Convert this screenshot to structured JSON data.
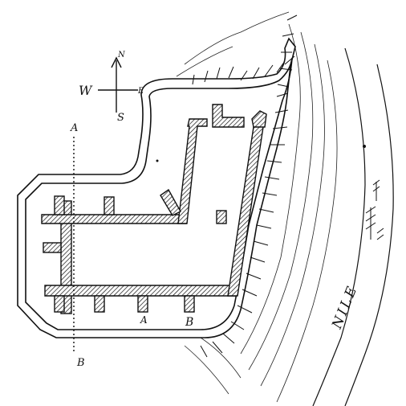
{
  "compass": {
    "north": "N",
    "south": "S",
    "east": "E",
    "west": "W"
  },
  "section_labels": {
    "line_a_top": "A",
    "line_b_bottom": "B",
    "buttress_a": "A",
    "buttress_b": "B"
  },
  "river_label": "NILE"
}
